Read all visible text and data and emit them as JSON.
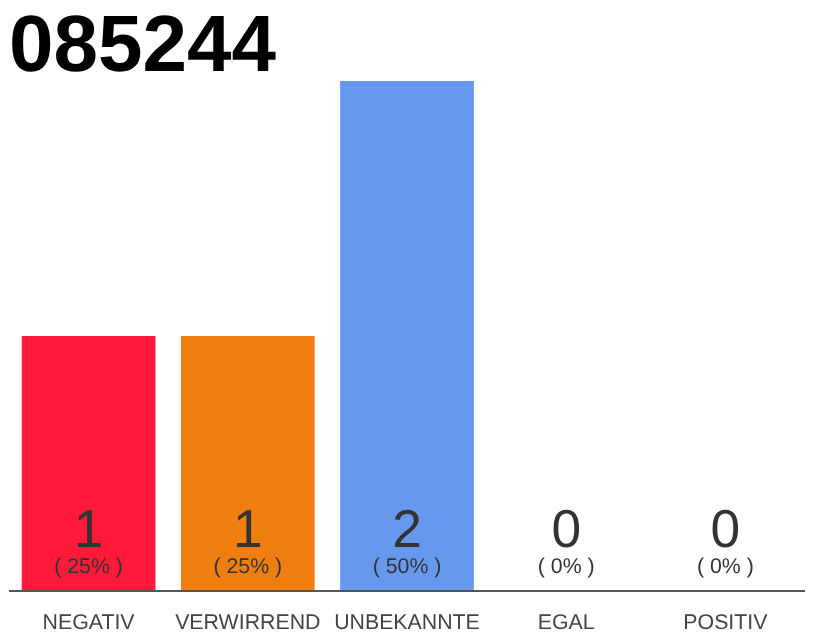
{
  "chart_data": {
    "type": "bar",
    "title": "085244",
    "categories": [
      "NEGATIV",
      "VERWIRREND",
      "UNBEKANNTE",
      "EGAL",
      "POSITIV"
    ],
    "values": [
      1,
      1,
      2,
      0,
      0
    ],
    "colors": [
      "#ff1a3a",
      "#f07f0f",
      "#6699ee",
      "#aaaaaa",
      "#aaaaaa"
    ],
    "ylim": [
      0,
      2
    ],
    "tick_labels": "x",
    "grid": false,
    "data_labels": true,
    "annotations": [
      {
        "text": "( 25% )",
        "x": "NEGATIV",
        "y": 0
      },
      {
        "text": "( 25% )",
        "x": "VERWIRREND",
        "y": 0
      },
      {
        "text": "( 50% )",
        "x": "UNBEKANNTE",
        "y": 0
      },
      {
        "text": "( 0% )",
        "x": "EGAL",
        "y": 0
      },
      {
        "text": "( 0% )",
        "x": "POSITIV",
        "y": 0
      }
    ]
  }
}
